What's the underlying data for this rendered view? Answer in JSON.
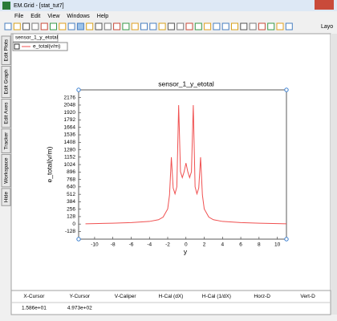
{
  "window": {
    "title": "EM.Grid - [stat_tut7]"
  },
  "menu": [
    "File",
    "Edit",
    "View",
    "Windows",
    "Help"
  ],
  "toolbar": {
    "overflow_label": "Layo"
  },
  "side_tabs": [
    "Edit Plots",
    "Edit Graph",
    "Edit Axes",
    "Tracker",
    "Workspace",
    "Hide"
  ],
  "document_tab": "sensor_1_y_etotal",
  "chart_data": {
    "type": "line",
    "title": "sensor_1_y_etotal",
    "x_label": "y",
    "y_label": "e_total(v/m)",
    "x": [
      -11,
      -10,
      -8,
      -6,
      -4,
      -3,
      -2.5,
      -2,
      -1.8,
      -1.6,
      -1.4,
      -1.2,
      -1,
      -0.8,
      -0.6,
      -0.4,
      -0.2,
      0,
      0.2,
      0.4,
      0.6,
      0.8,
      1,
      1.2,
      1.4,
      1.6,
      1.8,
      2,
      2.5,
      3,
      4,
      6,
      8,
      10,
      11
    ],
    "series": [
      {
        "name": "e_total(v/m)",
        "color": "#f05050",
        "values": [
          5,
          8,
          15,
          25,
          45,
          75,
          120,
          260,
          500,
          1150,
          620,
          520,
          640,
          2048,
          900,
          800,
          900,
          1050,
          900,
          800,
          900,
          2048,
          640,
          520,
          620,
          1150,
          500,
          260,
          120,
          75,
          45,
          25,
          15,
          8,
          5
        ]
      }
    ],
    "xlim": [
      -11.75,
      11
    ],
    "ylim": [
      -260,
      2310
    ],
    "xticks": [
      -10,
      -8,
      -6,
      -4,
      -2,
      0,
      2,
      4,
      6,
      8,
      10
    ],
    "yticks": [
      -128,
      0,
      128,
      256,
      384,
      512,
      640,
      768,
      896,
      1024,
      1152,
      1280,
      1408,
      1536,
      1664,
      1792,
      1920,
      2048,
      2176
    ]
  },
  "cursor_table": {
    "headers": [
      "X-Cursor",
      "Y-Cursor",
      "V-Caliper",
      "H-Cal (dX)",
      "H-Cal (1/dX)",
      "Horz-D",
      "Vert-D"
    ],
    "row": [
      "1.586e+01",
      "4.973e+02"
    ]
  }
}
